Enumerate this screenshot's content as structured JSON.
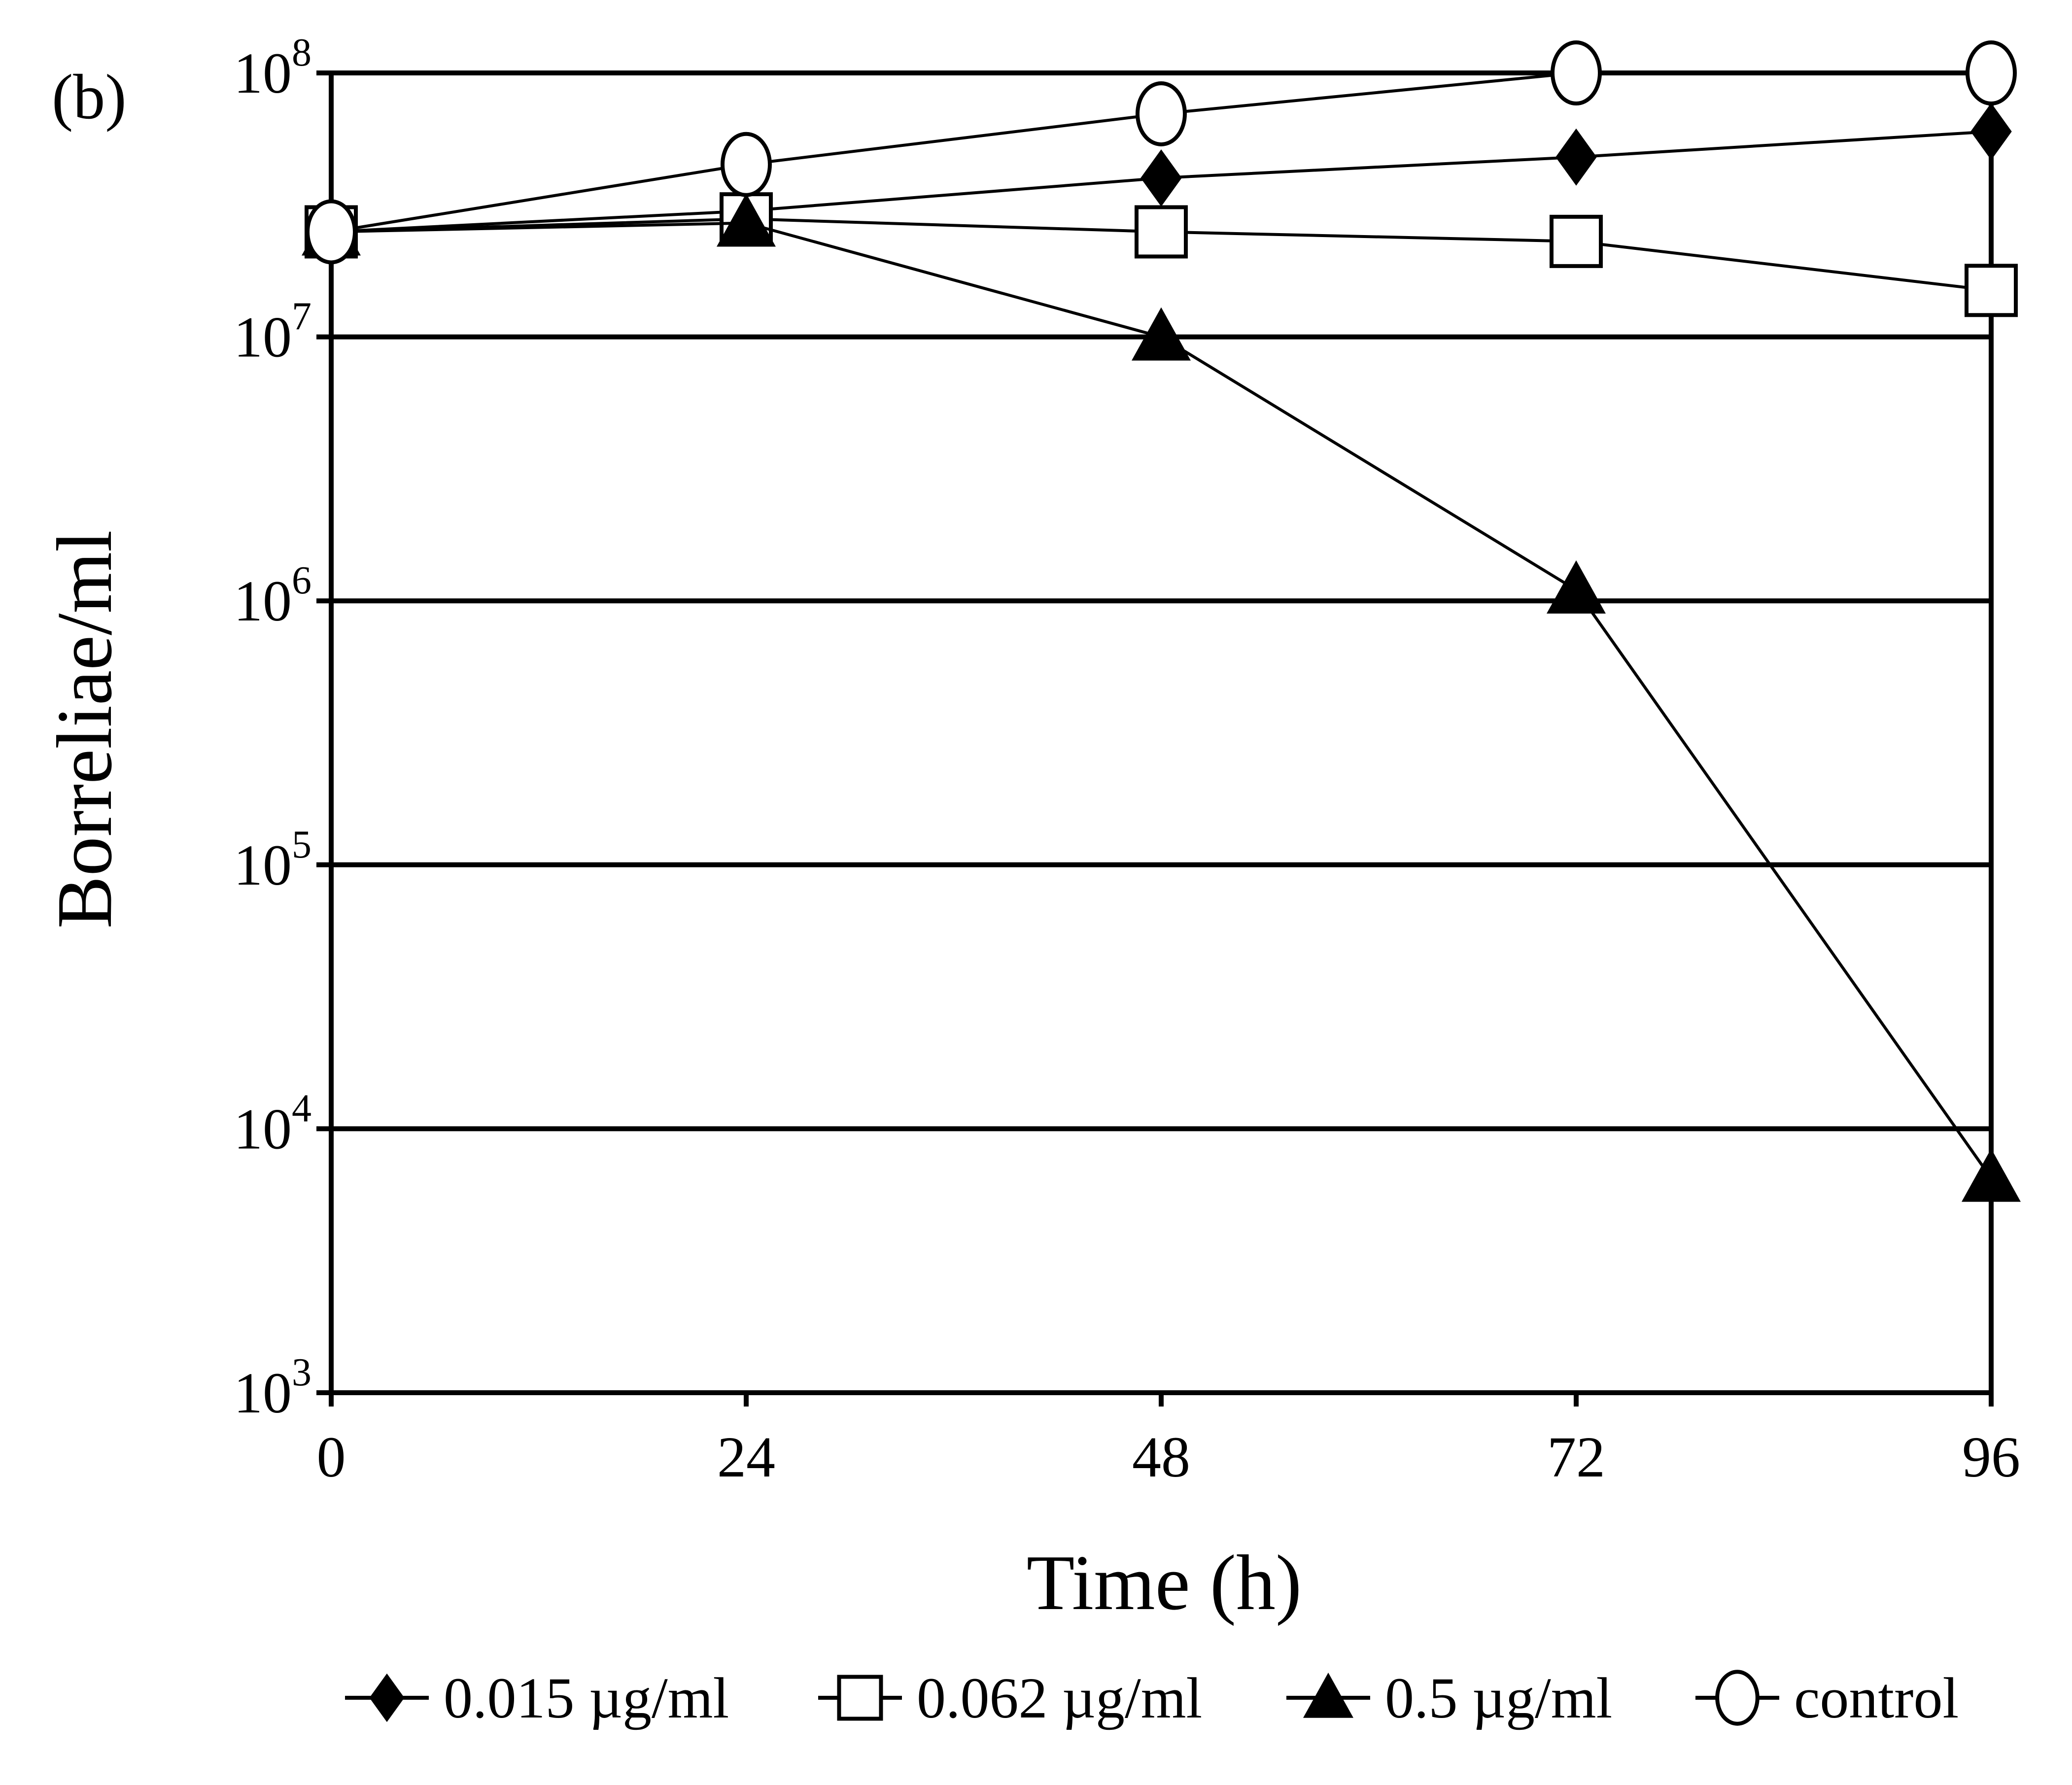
{
  "chart_data": {
    "type": "line",
    "panel_label": "(b)",
    "xlabel": "Time (h)",
    "ylabel": "Borreliae/ml",
    "y_scale": "log",
    "x": [
      0,
      24,
      48,
      72,
      96
    ],
    "xlim": [
      0,
      96
    ],
    "ylim": [
      1000,
      100000000
    ],
    "x_ticks": [
      "0",
      "24",
      "48",
      "72",
      "96"
    ],
    "y_ticks": [
      {
        "value": 1000,
        "base": "10",
        "exp": "3"
      },
      {
        "value": 10000,
        "base": "10",
        "exp": "4"
      },
      {
        "value": 100000,
        "base": "10",
        "exp": "5"
      },
      {
        "value": 1000000,
        "base": "10",
        "exp": "6"
      },
      {
        "value": 10000000,
        "base": "10",
        "exp": "7"
      },
      {
        "value": 100000000,
        "base": "10",
        "exp": "8"
      }
    ],
    "grid": true,
    "legend_position": "bottom",
    "series": [
      {
        "name": "0.015 µg/ml",
        "marker": "diamond-filled",
        "values": [
          25000000,
          30000000,
          40000000,
          48000000,
          60000000
        ]
      },
      {
        "name": "0.062 µg/ml",
        "marker": "square-open",
        "values": [
          25000000,
          28000000,
          25000000,
          23000000,
          15000000
        ]
      },
      {
        "name": "0.5 µg/ml",
        "marker": "triangle-filled",
        "values": [
          25000000,
          27000000,
          10000000,
          1100000,
          6500
        ]
      },
      {
        "name": "control",
        "marker": "circle-open",
        "values": [
          25000000,
          45000000,
          70000000,
          100000000,
          100000000
        ]
      }
    ]
  }
}
